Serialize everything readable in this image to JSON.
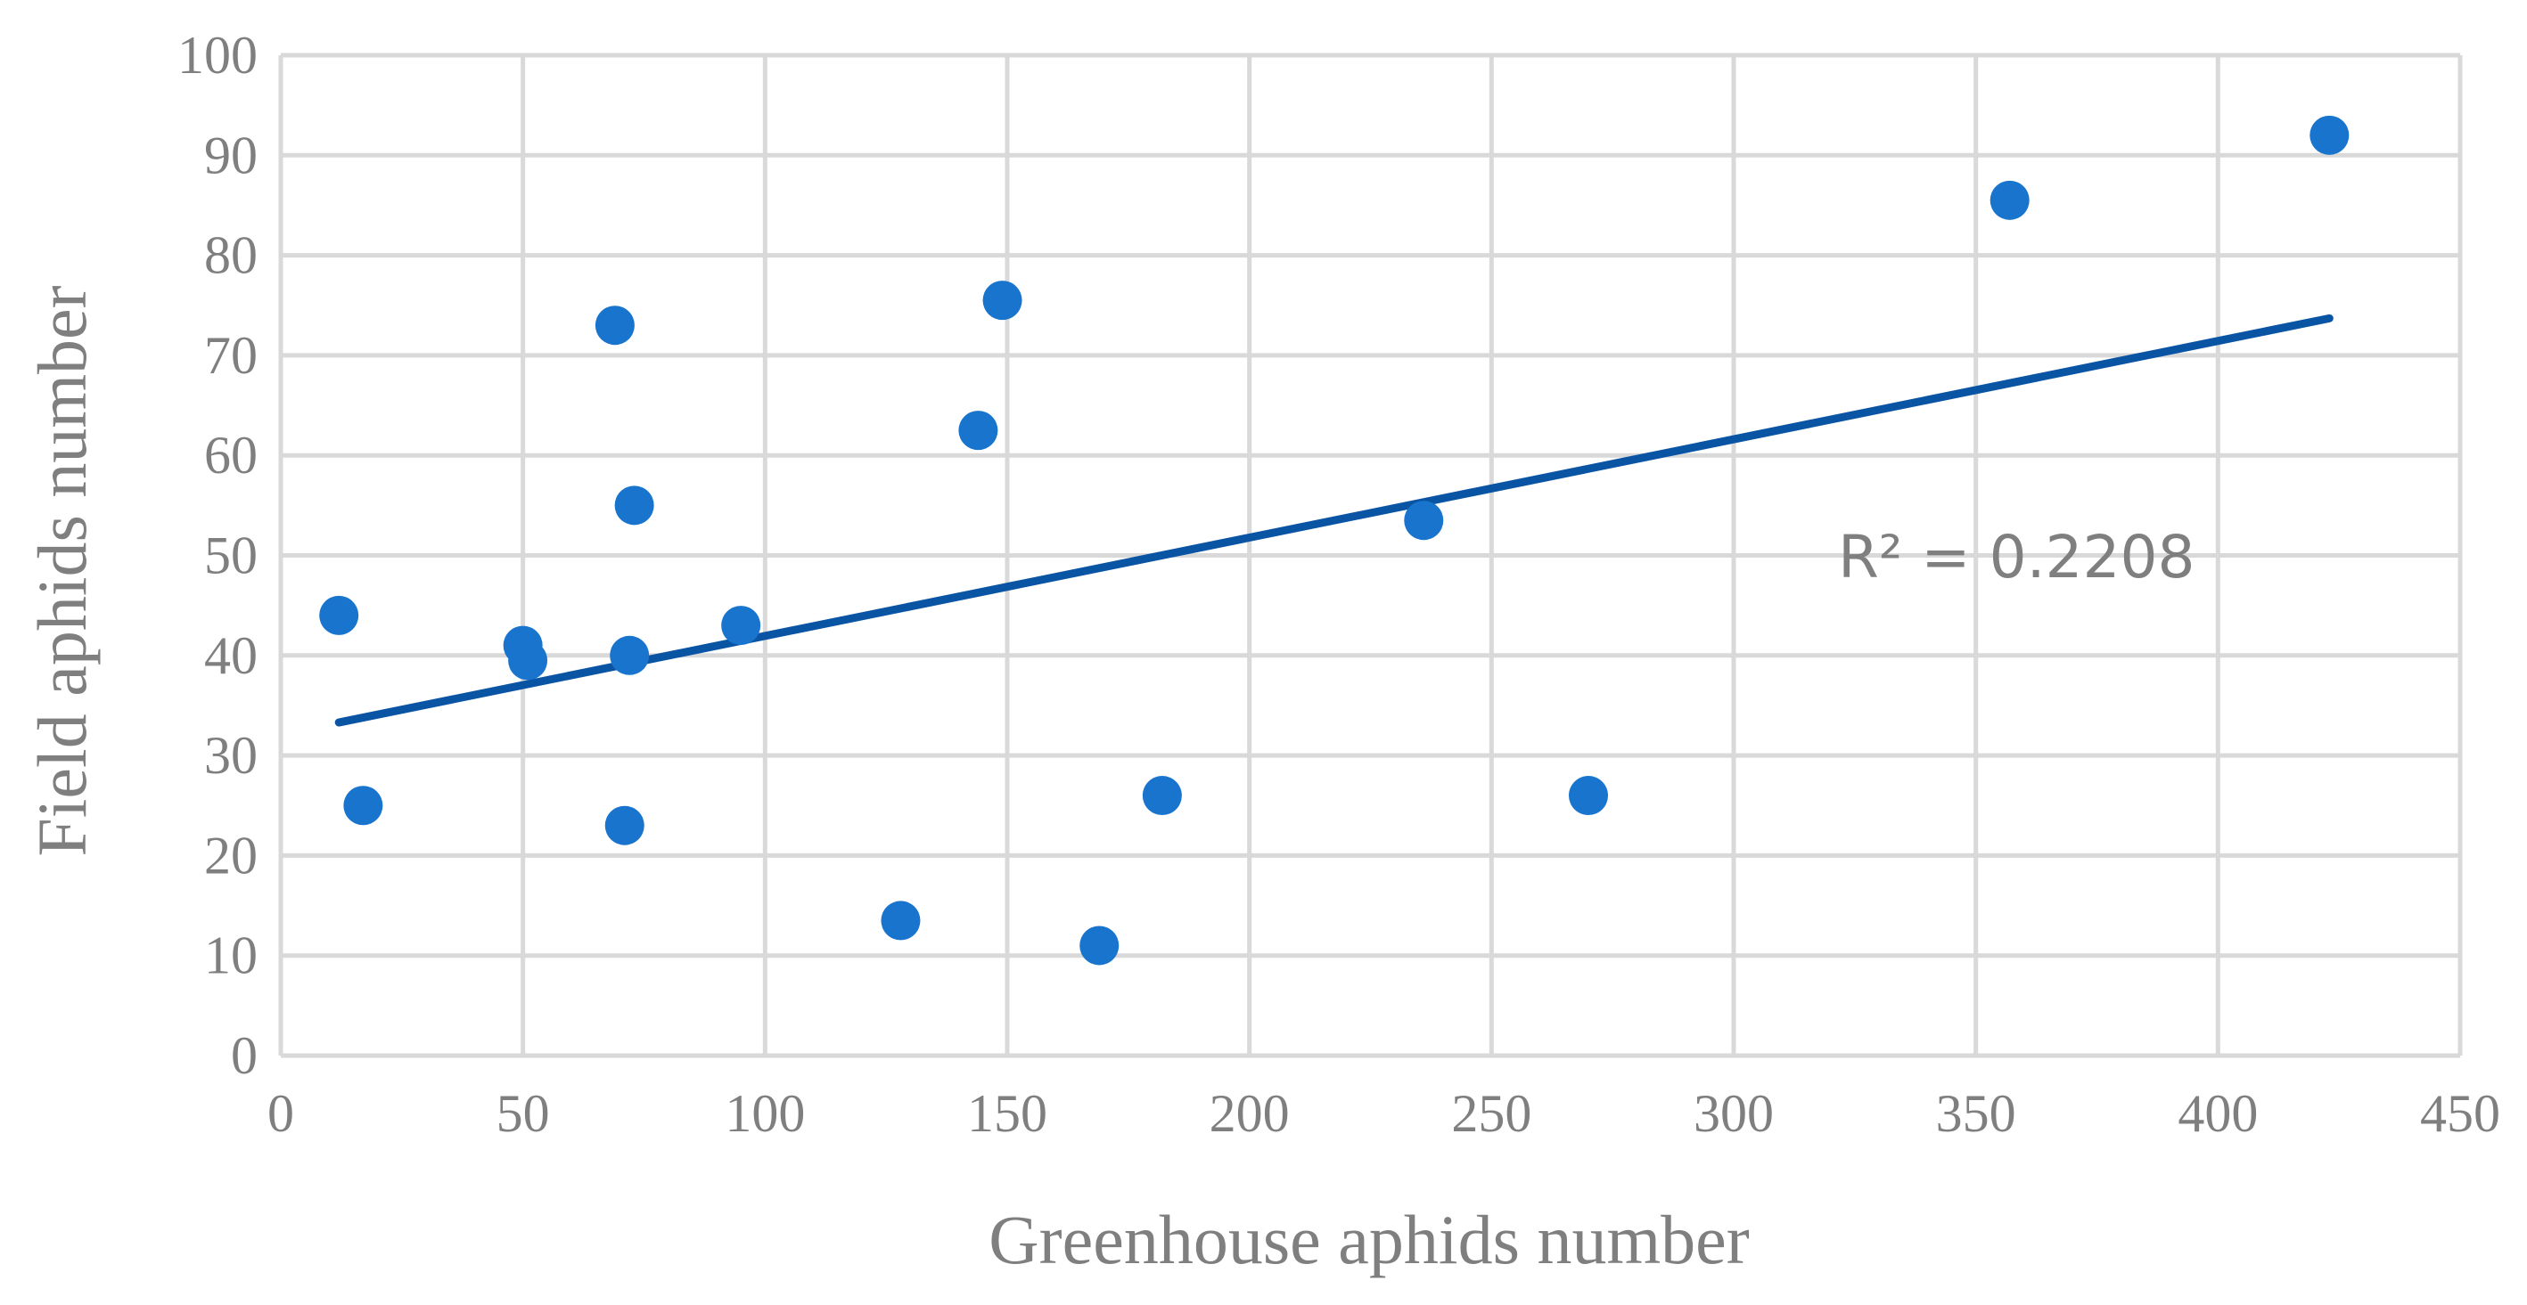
{
  "chart_data": {
    "type": "scatter",
    "title": "",
    "xlabel": "Greenhouse aphids number",
    "ylabel": "Field aphids number",
    "xlim": [
      0,
      450
    ],
    "ylim": [
      0,
      100
    ],
    "xticks": [
      "0",
      "50",
      "100",
      "150",
      "200",
      "250",
      "300",
      "350",
      "400",
      "450"
    ],
    "yticks": [
      "0",
      "10",
      "20",
      "30",
      "40",
      "50",
      "60",
      "70",
      "80",
      "90",
      "100"
    ],
    "grid": true,
    "legend": "none",
    "series": [
      {
        "color": "#1874cd",
        "points": [
          {
            "x": 12,
            "y": 44
          },
          {
            "x": 17,
            "y": 25
          },
          {
            "x": 50,
            "y": 41
          },
          {
            "x": 51,
            "y": 39.5
          },
          {
            "x": 69,
            "y": 73
          },
          {
            "x": 71,
            "y": 23
          },
          {
            "x": 72,
            "y": 40
          },
          {
            "x": 73,
            "y": 55
          },
          {
            "x": 95,
            "y": 43
          },
          {
            "x": 128,
            "y": 13.5
          },
          {
            "x": 144,
            "y": 62.5
          },
          {
            "x": 149,
            "y": 75.5
          },
          {
            "x": 169,
            "y": 11
          },
          {
            "x": 182,
            "y": 26
          },
          {
            "x": 236,
            "y": 53.5
          },
          {
            "x": 270,
            "y": 26
          },
          {
            "x": 357,
            "y": 85.5
          },
          {
            "x": 423,
            "y": 92
          }
        ]
      }
    ],
    "trendline": {
      "type": "linear",
      "color": "#0a54a4",
      "start": {
        "x": 12,
        "y": 33.3
      },
      "end": {
        "x": 423,
        "y": 73.7
      }
    },
    "annotations": [
      "R² = 0.2208"
    ]
  }
}
